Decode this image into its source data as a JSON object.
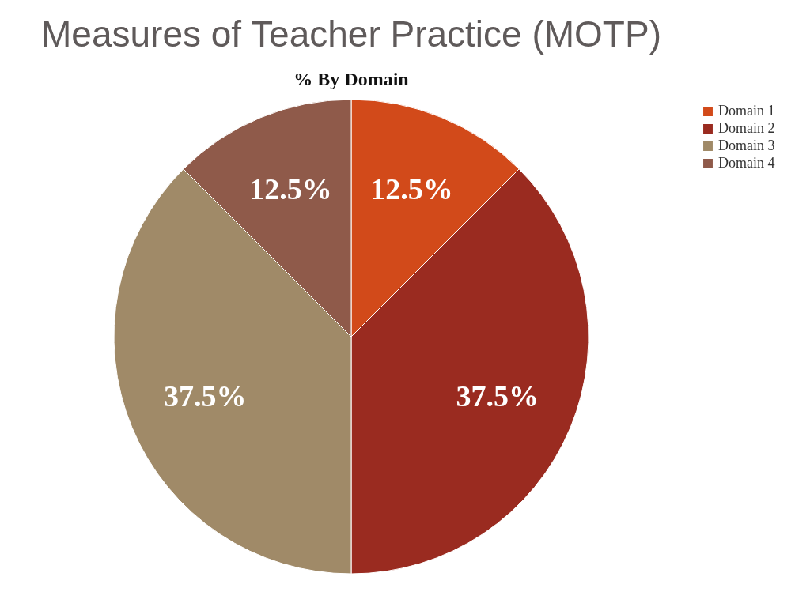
{
  "chart_data": {
    "type": "pie",
    "title": "Measures of Teacher Practice (MOTP)",
    "subtitle": "% By Domain",
    "categories": [
      "Domain 1",
      "Domain 2",
      "Domain 3",
      "Domain 4"
    ],
    "values": [
      12.5,
      37.5,
      37.5,
      12.5
    ],
    "value_labels": [
      "12.5%",
      "37.5%",
      "37.5%",
      "12.5%"
    ],
    "colors": [
      "#d24a1a",
      "#9a2b20",
      "#a08a68",
      "#8f5a4a"
    ],
    "legend": "right"
  }
}
